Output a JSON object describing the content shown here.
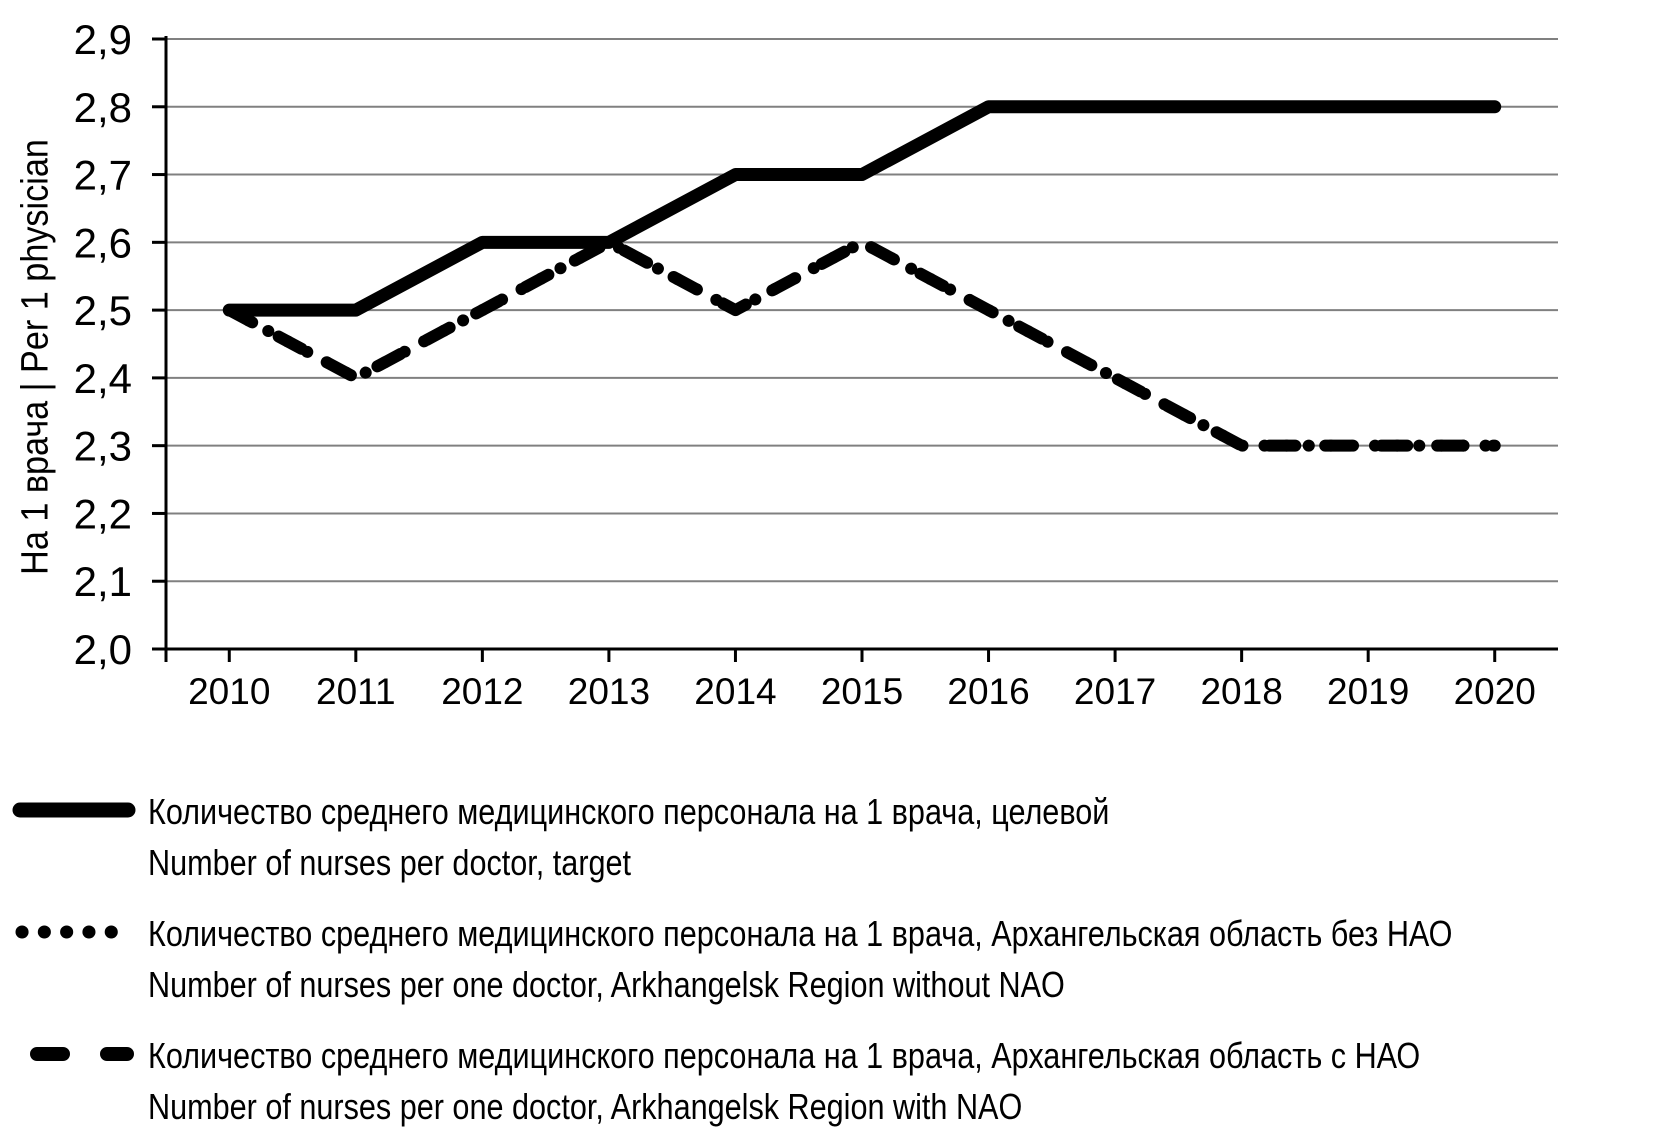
{
  "chart_data": {
    "type": "line",
    "title": "",
    "categories": [
      "2010",
      "2011",
      "2012",
      "2013",
      "2014",
      "2015",
      "2016",
      "2017",
      "2018",
      "2019",
      "2020"
    ],
    "yticks": [
      "2,0",
      "2,1",
      "2,2",
      "2,3",
      "2,4",
      "2,5",
      "2,6",
      "2,7",
      "2,8",
      "2,9"
    ],
    "ylim": [
      2.0,
      2.9
    ],
    "ytick_step": 0.1,
    "xlabel": "",
    "ylabel": "На 1 врача | Per 1 physician",
    "grid": "horizontal",
    "legend_position": "bottom",
    "series": [
      {
        "name_ru": "Количество среднего медицинского персонала на 1 врача, целевой",
        "name_en": "Number of nurses per doctor, target",
        "style": "solid",
        "values": [
          2.5,
          2.5,
          2.6,
          2.6,
          2.7,
          2.7,
          2.8,
          2.8,
          2.8,
          2.8,
          2.8
        ]
      },
      {
        "name_ru": "Количество среднего медицинского персонала на 1 врача, Архангельская область без НАО",
        "name_en": "Number of nurses per one doctor, Arkhangelsk Region without NAO",
        "style": "dotted",
        "values": [
          2.5,
          2.4,
          2.5,
          2.6,
          2.5,
          2.6,
          2.5,
          2.4,
          2.3,
          2.3,
          2.3
        ]
      },
      {
        "name_ru": "Количество среднего медицинского персонала на 1 врача, Архангельская область с НАО",
        "name_en": "Number of nurses per one doctor, Arkhangelsk Region with NAO",
        "style": "dashed",
        "values": [
          2.5,
          2.4,
          2.5,
          2.6,
          2.5,
          2.6,
          2.5,
          2.4,
          2.3,
          2.3,
          2.3
        ]
      }
    ]
  },
  "colors": {
    "line": "#000000",
    "gridline": "#808080",
    "axis": "#000000",
    "background": "#ffffff",
    "text": "#000000"
  },
  "legend": {
    "markers": [
      "solid-line",
      "dotted-line",
      "dashed-line"
    ]
  }
}
